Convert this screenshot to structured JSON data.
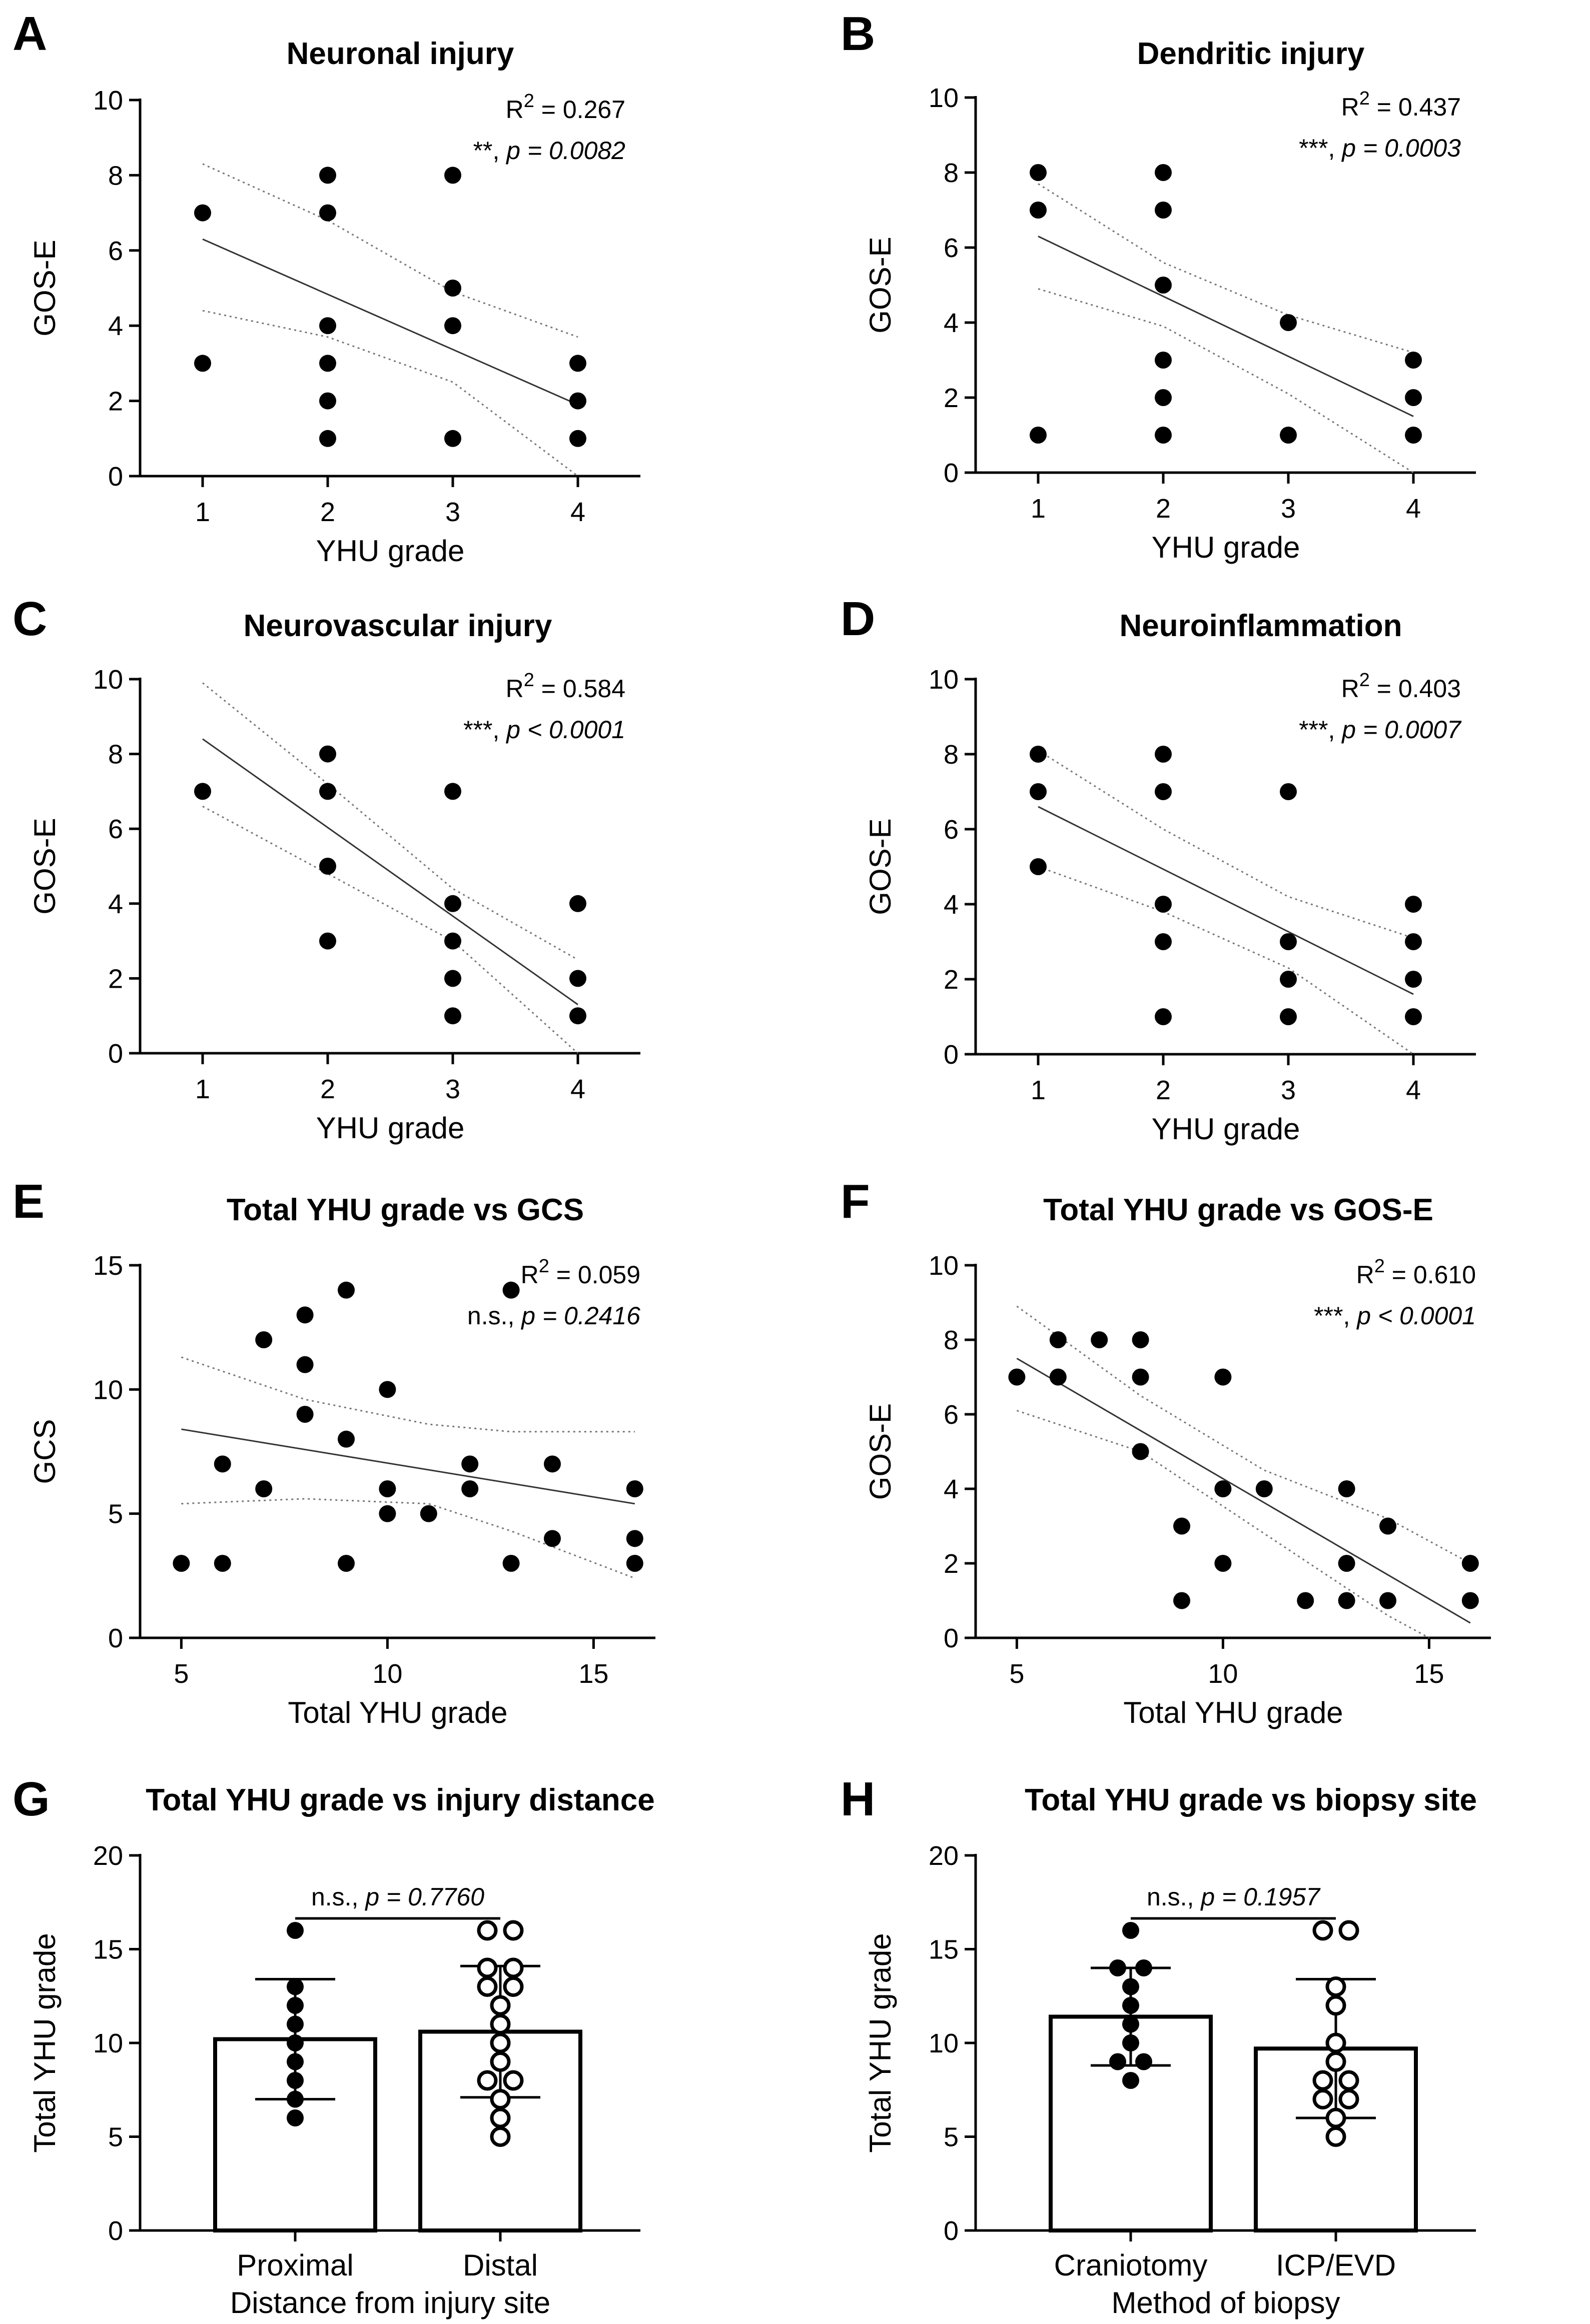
{
  "panels": [
    {
      "letter": "A",
      "title": "Neuronal injury"
    },
    {
      "letter": "B",
      "title": "Dendritic injury"
    },
    {
      "letter": "C",
      "title": "Neurovascular injury"
    },
    {
      "letter": "D",
      "title": "Neuroinflammation"
    },
    {
      "letter": "E",
      "title": "Total YHU grade vs GCS"
    },
    {
      "letter": "F",
      "title": "Total YHU grade vs GOS-E"
    },
    {
      "letter": "G",
      "title": "Total YHU grade vs injury distance"
    },
    {
      "letter": "H",
      "title": "Total YHU grade vs biopsy site"
    }
  ],
  "chart_data": [
    {
      "type": "scatter",
      "title": "Neuronal injury",
      "xlabel": "YHU grade",
      "ylabel": "GOS-E",
      "xlim": [
        0.5,
        4.5
      ],
      "ylim": [
        0,
        10
      ],
      "xticks": [
        1,
        2,
        3,
        4
      ],
      "yticks": [
        0,
        2,
        4,
        6,
        8,
        10
      ],
      "r2": "0.267",
      "sig": "**, ",
      "p": "p = 0.0082",
      "points": [
        [
          1,
          7
        ],
        [
          1,
          3
        ],
        [
          2,
          8
        ],
        [
          2,
          7
        ],
        [
          2,
          4
        ],
        [
          2,
          3
        ],
        [
          2,
          2
        ],
        [
          2,
          1
        ],
        [
          3,
          8
        ],
        [
          3,
          5
        ],
        [
          3,
          4
        ],
        [
          3,
          1
        ],
        [
          4,
          3
        ],
        [
          4,
          2
        ],
        [
          4,
          1
        ]
      ],
      "fit": [
        [
          1,
          6.3
        ],
        [
          4,
          1.9
        ]
      ],
      "ci_upper": [
        [
          1,
          8.3
        ],
        [
          2,
          6.8
        ],
        [
          3,
          4.9
        ],
        [
          4,
          3.7
        ]
      ],
      "ci_lower": [
        [
          1,
          4.4
        ],
        [
          2,
          3.7
        ],
        [
          3,
          2.5
        ],
        [
          4,
          0.0
        ]
      ]
    },
    {
      "type": "scatter",
      "title": "Dendritic injury",
      "xlabel": "YHU grade",
      "ylabel": "GOS-E",
      "xlim": [
        0.5,
        4.5
      ],
      "ylim": [
        0,
        10
      ],
      "xticks": [
        1,
        2,
        3,
        4
      ],
      "yticks": [
        0,
        2,
        4,
        6,
        8,
        10
      ],
      "r2": "0.437",
      "sig": "***, ",
      "p": "p = 0.0003",
      "points": [
        [
          1,
          8
        ],
        [
          1,
          7
        ],
        [
          1,
          1
        ],
        [
          2,
          8
        ],
        [
          2,
          7
        ],
        [
          2,
          5
        ],
        [
          2,
          3
        ],
        [
          2,
          2
        ],
        [
          2,
          1
        ],
        [
          3,
          4
        ],
        [
          3,
          1
        ],
        [
          4,
          3
        ],
        [
          4,
          2
        ],
        [
          4,
          1
        ]
      ],
      "fit": [
        [
          1,
          6.3
        ],
        [
          4,
          1.5
        ]
      ],
      "ci_upper": [
        [
          1,
          7.7
        ],
        [
          2,
          5.6
        ],
        [
          3,
          4.2
        ],
        [
          4,
          3.2
        ]
      ],
      "ci_lower": [
        [
          1,
          4.9
        ],
        [
          2,
          3.9
        ],
        [
          3,
          2.1
        ],
        [
          4,
          0.0
        ]
      ]
    },
    {
      "type": "scatter",
      "title": "Neurovascular injury",
      "xlabel": "YHU grade",
      "ylabel": "GOS-E",
      "xlim": [
        0.5,
        4.5
      ],
      "ylim": [
        0,
        10
      ],
      "xticks": [
        1,
        2,
        3,
        4
      ],
      "yticks": [
        0,
        2,
        4,
        6,
        8,
        10
      ],
      "r2": "0.584",
      "sig": "***, ",
      "p": "p < 0.0001",
      "points": [
        [
          1,
          7
        ],
        [
          2,
          8
        ],
        [
          2,
          7
        ],
        [
          2,
          5
        ],
        [
          2,
          3
        ],
        [
          3,
          7
        ],
        [
          3,
          4
        ],
        [
          3,
          3
        ],
        [
          3,
          2
        ],
        [
          3,
          1
        ],
        [
          4,
          4
        ],
        [
          4,
          2
        ],
        [
          4,
          1
        ]
      ],
      "fit": [
        [
          1,
          8.4
        ],
        [
          4,
          1.3
        ]
      ],
      "ci_upper": [
        [
          1,
          9.9
        ],
        [
          2,
          7.2
        ],
        [
          3,
          4.4
        ],
        [
          4,
          2.5
        ]
      ],
      "ci_lower": [
        [
          1,
          6.6
        ],
        [
          2,
          4.8
        ],
        [
          3,
          3.0
        ],
        [
          4,
          0.0
        ]
      ]
    },
    {
      "type": "scatter",
      "title": "Neuroinflammation",
      "xlabel": "YHU grade",
      "ylabel": "GOS-E",
      "xlim": [
        0.5,
        4.5
      ],
      "ylim": [
        0,
        10
      ],
      "xticks": [
        1,
        2,
        3,
        4
      ],
      "yticks": [
        0,
        2,
        4,
        6,
        8,
        10
      ],
      "r2": "0.403",
      "sig": "***, ",
      "p": "p = 0.0007",
      "points": [
        [
          1,
          8
        ],
        [
          1,
          7
        ],
        [
          1,
          5
        ],
        [
          2,
          8
        ],
        [
          2,
          7
        ],
        [
          2,
          4
        ],
        [
          2,
          3
        ],
        [
          2,
          1
        ],
        [
          3,
          7
        ],
        [
          3,
          3
        ],
        [
          3,
          2
        ],
        [
          3,
          1
        ],
        [
          4,
          4
        ],
        [
          4,
          3
        ],
        [
          4,
          2
        ],
        [
          4,
          1
        ]
      ],
      "fit": [
        [
          1,
          6.6
        ],
        [
          4,
          1.6
        ]
      ],
      "ci_upper": [
        [
          1,
          8.1
        ],
        [
          2,
          6.0
        ],
        [
          3,
          4.2
        ],
        [
          4,
          3.1
        ]
      ],
      "ci_lower": [
        [
          1,
          5.0
        ],
        [
          2,
          3.8
        ],
        [
          3,
          2.3
        ],
        [
          4,
          0.0
        ]
      ]
    },
    {
      "type": "scatter",
      "title": "Total YHU grade vs GCS",
      "xlabel": "Total YHU grade",
      "ylabel": "GCS",
      "xlim": [
        4,
        16.5
      ],
      "ylim": [
        0,
        15
      ],
      "xticks": [
        5,
        10,
        15
      ],
      "yticks": [
        0,
        5,
        10,
        15
      ],
      "r2": "0.059",
      "sig": "n.s., ",
      "p": "p = 0.2416",
      "points": [
        [
          5,
          3
        ],
        [
          6,
          7
        ],
        [
          6,
          3
        ],
        [
          7,
          12
        ],
        [
          7,
          6
        ],
        [
          8,
          13
        ],
        [
          8,
          11
        ],
        [
          8,
          9
        ],
        [
          9,
          14
        ],
        [
          9,
          8
        ],
        [
          9,
          3
        ],
        [
          10,
          10
        ],
        [
          10,
          6
        ],
        [
          10,
          5
        ],
        [
          11,
          5
        ],
        [
          12,
          7
        ],
        [
          12,
          6
        ],
        [
          13,
          14
        ],
        [
          13,
          3
        ],
        [
          14,
          7
        ],
        [
          14,
          4
        ],
        [
          16,
          6
        ],
        [
          16,
          4
        ],
        [
          16,
          3
        ]
      ],
      "fit": [
        [
          5,
          8.4
        ],
        [
          16,
          5.4
        ]
      ],
      "ci_upper": [
        [
          5,
          11.3
        ],
        [
          8,
          9.6
        ],
        [
          11,
          8.6
        ],
        [
          13,
          8.3
        ],
        [
          16,
          8.3
        ]
      ],
      "ci_lower": [
        [
          5,
          5.4
        ],
        [
          8,
          5.6
        ],
        [
          11,
          5.4
        ],
        [
          13,
          4.3
        ],
        [
          16,
          2.4
        ]
      ]
    },
    {
      "type": "scatter",
      "title": "Total YHU grade vs GOS-E",
      "xlabel": "Total YHU grade",
      "ylabel": "GOS-E",
      "xlim": [
        4,
        16.5
      ],
      "ylim": [
        0,
        10
      ],
      "xticks": [
        5,
        10,
        15
      ],
      "yticks": [
        0,
        2,
        4,
        6,
        8,
        10
      ],
      "r2": "0.610",
      "sig": "***, ",
      "p": "p < 0.0001",
      "points": [
        [
          5,
          7
        ],
        [
          6,
          8
        ],
        [
          6,
          7
        ],
        [
          7,
          8
        ],
        [
          8,
          8
        ],
        [
          8,
          7
        ],
        [
          8,
          5
        ],
        [
          9,
          3
        ],
        [
          9,
          1
        ],
        [
          10,
          7
        ],
        [
          10,
          4
        ],
        [
          10,
          2
        ],
        [
          11,
          4
        ],
        [
          12,
          1
        ],
        [
          13,
          4
        ],
        [
          13,
          2
        ],
        [
          13,
          1
        ],
        [
          14,
          3
        ],
        [
          14,
          1
        ],
        [
          16,
          2
        ],
        [
          16,
          1
        ]
      ],
      "fit": [
        [
          5,
          7.5
        ],
        [
          16,
          0.4
        ]
      ],
      "ci_upper": [
        [
          5,
          8.9
        ],
        [
          8,
          6.5
        ],
        [
          11,
          4.5
        ],
        [
          14,
          3.2
        ],
        [
          16,
          2.0
        ]
      ],
      "ci_lower": [
        [
          5,
          6.1
        ],
        [
          8,
          5.0
        ],
        [
          11,
          2.8
        ],
        [
          14,
          0.6
        ],
        [
          15,
          0.0
        ]
      ]
    },
    {
      "type": "bar",
      "title": "Total YHU grade vs injury distance",
      "xlabel": "Distance from injury site",
      "ylabel": "Total YHU grade",
      "ylim": [
        0,
        20
      ],
      "yticks": [
        0,
        5,
        10,
        15,
        20
      ],
      "comparison": "n.s., ",
      "p": "p = 0.7760",
      "categories": [
        "Proximal",
        "Distal"
      ],
      "means": [
        10.2,
        10.6
      ],
      "sd": [
        3.2,
        3.5
      ],
      "filled": [
        true,
        false
      ],
      "points": [
        [
          16,
          13,
          12,
          11,
          10,
          9,
          8,
          7,
          6
        ],
        [
          16,
          16,
          14,
          14,
          13,
          13,
          12,
          11,
          10,
          9,
          8,
          8,
          7,
          6,
          5
        ]
      ]
    },
    {
      "type": "bar",
      "title": "Total YHU grade vs biopsy site",
      "xlabel": "Method of biopsy",
      "ylabel": "Total YHU grade",
      "ylim": [
        0,
        20
      ],
      "yticks": [
        0,
        5,
        10,
        15,
        20
      ],
      "comparison": "n.s., ",
      "p": "p = 0.1957",
      "categories": [
        "Craniotomy",
        "ICP/EVD"
      ],
      "means": [
        11.4,
        9.7
      ],
      "sd": [
        2.6,
        3.7
      ],
      "filled": [
        true,
        false
      ],
      "points": [
        [
          16,
          14,
          14,
          13,
          12,
          11,
          10,
          9,
          9,
          8
        ],
        [
          16,
          16,
          13,
          12,
          10,
          9,
          8,
          8,
          7,
          7,
          6,
          5
        ]
      ]
    }
  ]
}
